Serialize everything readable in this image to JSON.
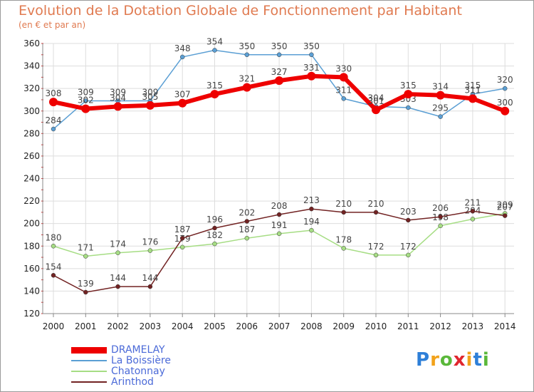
{
  "title": "Evolution de la Dotation Globale de Fonctionnement par Habitant",
  "subtitle": "(en € et par an)",
  "logo": {
    "text": "Proxiti",
    "letter_colors": [
      "#2e7fd8",
      "#f2a21a",
      "#5ab83a",
      "#e0262e",
      "#f2a21a",
      "#2e7fd8",
      "#5ab83a"
    ]
  },
  "chart_data": {
    "type": "line",
    "x": [
      2000,
      2001,
      2002,
      2003,
      2004,
      2005,
      2006,
      2007,
      2008,
      2009,
      2010,
      2011,
      2012,
      2013,
      2014
    ],
    "ylim": [
      120,
      360
    ],
    "yticks": [
      120,
      140,
      160,
      180,
      200,
      220,
      240,
      260,
      280,
      300,
      320,
      340,
      360
    ],
    "grid": true,
    "legend_position": "bottom-left",
    "series": [
      {
        "name": "La Boissière",
        "color": "#5b9fd4",
        "width": 1.5,
        "marker": 3,
        "values": [
          284,
          309,
          309,
          309,
          348,
          354,
          350,
          350,
          350,
          311,
          304,
          303,
          295,
          315,
          320
        ]
      },
      {
        "name": "Chatonnay",
        "color": "#a6dd84",
        "width": 1.5,
        "marker": 3,
        "values": [
          180,
          171,
          174,
          176,
          179,
          182,
          187,
          191,
          194,
          178,
          172,
          172,
          198,
          204,
          209
        ]
      },
      {
        "name": "Arinthod",
        "color": "#722323",
        "width": 1.5,
        "marker": 3,
        "values": [
          154,
          139,
          144,
          144,
          187,
          196,
          202,
          208,
          213,
          210,
          210,
          203,
          206,
          211,
          207
        ]
      },
      {
        "name": "DRAMELAY",
        "color": "#ee0000",
        "width": 6,
        "marker": 6,
        "values": [
          308,
          302,
          304,
          305,
          307,
          315,
          321,
          327,
          331,
          330,
          301,
          315,
          314,
          311,
          300
        ]
      }
    ]
  }
}
